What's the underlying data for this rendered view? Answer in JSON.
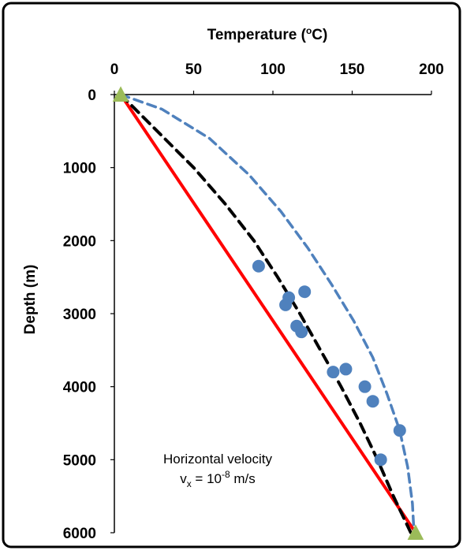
{
  "chart_data": {
    "type": "scatter",
    "title": "Temperature (°C)",
    "xlabel_main": "Temperature (",
    "xlabel_sup": "o",
    "xlabel_end": "C)",
    "ylabel": "Depth (m)",
    "xlim": [
      0,
      200
    ],
    "ylim": [
      0,
      6000
    ],
    "x_axis_position": "top",
    "y_inverted": true,
    "grid": false,
    "x_ticks": [
      0,
      50,
      100,
      150,
      200
    ],
    "y_ticks": [
      0,
      1000,
      2000,
      3000,
      4000,
      5000,
      6000
    ],
    "annotation_line1": "Horizontal velocity",
    "annotation_line2_prefix": "v",
    "annotation_line2_sub": "x",
    "annotation_line2_mid": " = 10",
    "annotation_line2_sup": "-8",
    "annotation_line2_suffix": " m/s",
    "colors": {
      "red_line": "#ff0000",
      "black_dashed": "#000000",
      "blue_dashed": "#4f81bd",
      "points": "#4f81bd",
      "triangles": "#9bbb59",
      "frame": "#000000"
    },
    "series": [
      {
        "style": "red-solid-line",
        "points": [
          [
            4,
            0
          ],
          [
            190,
            6000
          ]
        ]
      },
      {
        "style": "black-dashed-curve",
        "points": [
          [
            4,
            0
          ],
          [
            27,
            500
          ],
          [
            50,
            1000
          ],
          [
            70,
            1500
          ],
          [
            88,
            2000
          ],
          [
            103,
            2500
          ],
          [
            117,
            3000
          ],
          [
            130,
            3500
          ],
          [
            143,
            4000
          ],
          [
            155,
            4500
          ],
          [
            166,
            5000
          ],
          [
            176,
            5500
          ],
          [
            187,
            6000
          ]
        ]
      },
      {
        "style": "blue-dashed-curve",
        "points": [
          [
            4,
            0
          ],
          [
            30,
            200
          ],
          [
            60,
            600
          ],
          [
            85,
            1100
          ],
          [
            105,
            1600
          ],
          [
            122,
            2100
          ],
          [
            137,
            2600
          ],
          [
            151,
            3100
          ],
          [
            163,
            3600
          ],
          [
            172,
            4100
          ],
          [
            180,
            4600
          ],
          [
            185,
            5100
          ],
          [
            188,
            5600
          ],
          [
            189,
            6000
          ]
        ]
      },
      {
        "style": "blue-points",
        "points": [
          [
            91,
            2350
          ],
          [
            120,
            2700
          ],
          [
            110,
            2780
          ],
          [
            108,
            2880
          ],
          [
            115,
            3170
          ],
          [
            118,
            3250
          ],
          [
            138,
            3800
          ],
          [
            146,
            3760
          ],
          [
            158,
            4000
          ],
          [
            163,
            4200
          ],
          [
            180,
            4600
          ],
          [
            168,
            5000
          ]
        ]
      },
      {
        "style": "green-triangles",
        "points": [
          [
            4,
            0
          ],
          [
            190,
            6000
          ]
        ]
      }
    ]
  }
}
